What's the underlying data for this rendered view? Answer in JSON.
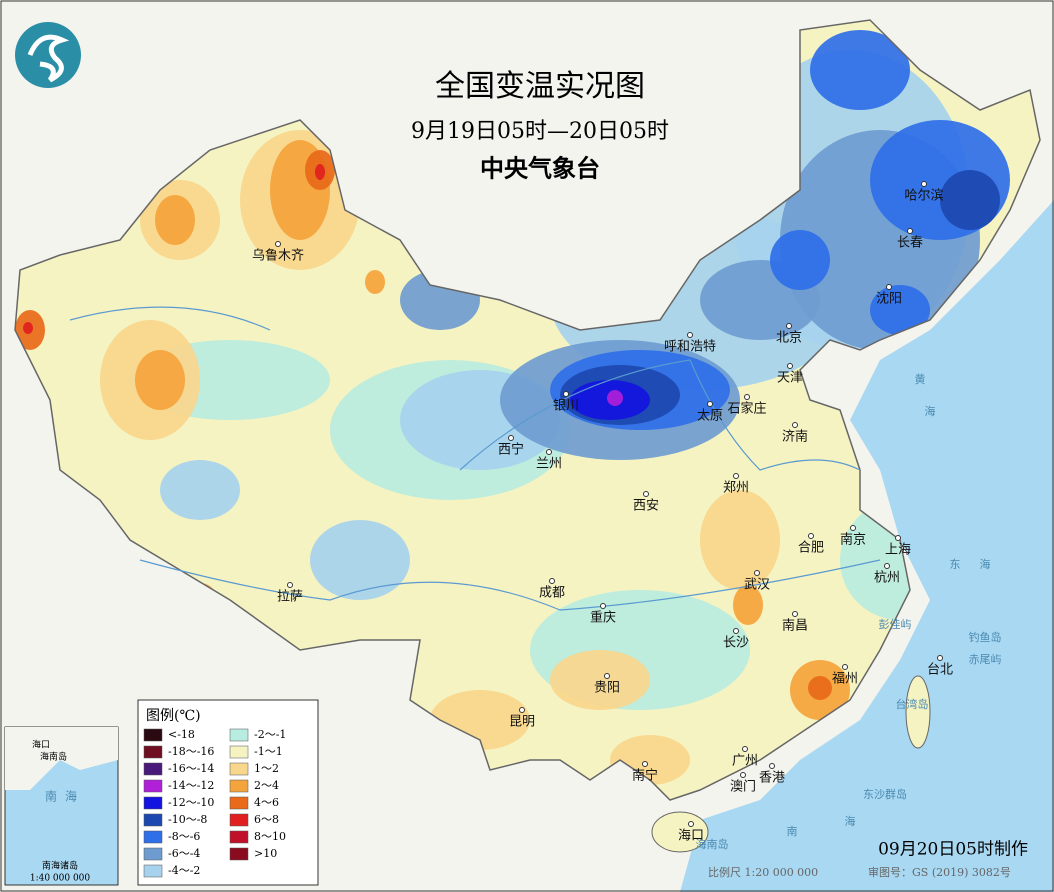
{
  "header": {
    "title": "全国变温实况图",
    "subtitle": "9月19日05时—20日05时",
    "agency": "中央气象台"
  },
  "legend": {
    "title": "图例(℃)",
    "items": [
      {
        "label": "<-18",
        "color": "#2a0a10"
      },
      {
        "label": "-18～-16",
        "color": "#6e1020"
      },
      {
        "label": "-16～-14",
        "color": "#4a1a7a"
      },
      {
        "label": "-14～-12",
        "color": "#b020d8"
      },
      {
        "label": "-12～-10",
        "color": "#1414e0"
      },
      {
        "label": "-10～-8",
        "color": "#1c48b0"
      },
      {
        "label": "-8～-6",
        "color": "#2f6fe8"
      },
      {
        "label": "-6～-4",
        "color": "#6f9cd0"
      },
      {
        "label": "-4～-2",
        "color": "#a6d2ee"
      },
      {
        "label": "-2～-1",
        "color": "#b8ece0"
      },
      {
        "label": "-1～1",
        "color": "#f5f3c2"
      },
      {
        "label": "1～2",
        "color": "#f8d68c"
      },
      {
        "label": "2～4",
        "color": "#f4a43c"
      },
      {
        "label": "4～6",
        "color": "#e86a1a"
      },
      {
        "label": "6～8",
        "color": "#e02020"
      },
      {
        "label": "8～10",
        "color": "#c0102a"
      },
      {
        "label": ">10",
        "color": "#8a0a1e"
      }
    ]
  },
  "cities": [
    "乌鲁木齐",
    "哈尔滨",
    "长春",
    "沈阳",
    "北京",
    "呼和浩特",
    "天津",
    "银川",
    "太原",
    "石家庄",
    "济南",
    "西宁",
    "兰州",
    "郑州",
    "西安",
    "合肥",
    "南京",
    "上海",
    "拉萨",
    "成都",
    "武汉",
    "杭州",
    "重庆",
    "长沙",
    "南昌",
    "福州",
    "台北",
    "贵阳",
    "昆明",
    "广州",
    "南宁",
    "香港",
    "澳门",
    "海口"
  ],
  "seas": [
    "黄",
    "海",
    "东",
    "海",
    "南",
    "海",
    "钓鱼岛",
    "赤尾屿",
    "东沙群岛",
    "台湾岛",
    "彭佳屿",
    "海南岛"
  ],
  "inset": {
    "labels": [
      "海口",
      "海南岛",
      "南",
      "海",
      "南海诸岛",
      "1:40 000 000"
    ]
  },
  "footer": {
    "made": "09月20日05时制作",
    "scale": "比例尺 1:20 000 000",
    "review": "审图号：GS (2019) 3082号"
  }
}
